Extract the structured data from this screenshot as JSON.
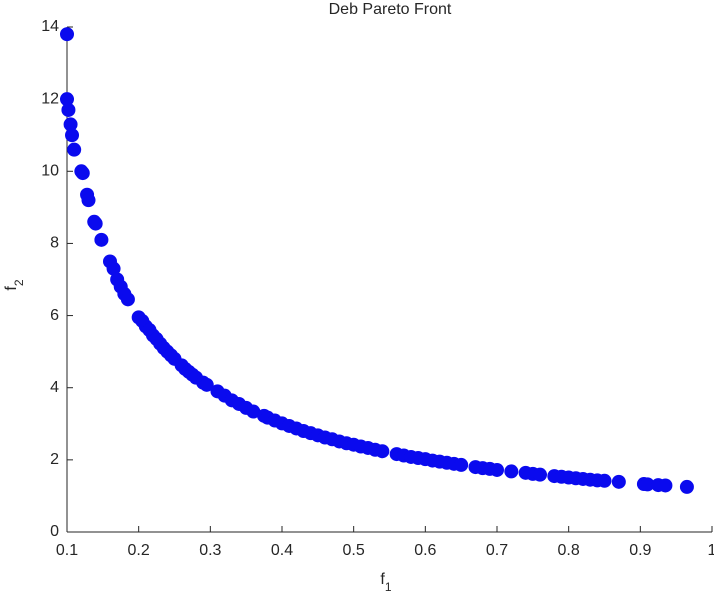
{
  "chart_data": {
    "type": "scatter",
    "title": "Deb Pareto Front",
    "xlabel": "f",
    "xlabel_sub": "1",
    "ylabel": "f",
    "ylabel_sub": "2",
    "color": "#0a0aee",
    "xlim": [
      0.1,
      1
    ],
    "xticks": [
      0.1,
      0.2,
      0.3,
      0.4,
      0.5,
      0.6,
      0.7,
      0.8,
      0.9,
      1
    ],
    "ylim": [
      0,
      14
    ],
    "yticks": [
      0,
      2,
      4,
      6,
      8,
      10,
      12,
      14
    ],
    "x": [
      0.1,
      0.1,
      0.102,
      0.105,
      0.107,
      0.11,
      0.12,
      0.122,
      0.128,
      0.13,
      0.138,
      0.14,
      0.148,
      0.16,
      0.165,
      0.17,
      0.175,
      0.18,
      0.185,
      0.2,
      0.205,
      0.21,
      0.215,
      0.22,
      0.225,
      0.23,
      0.235,
      0.24,
      0.245,
      0.25,
      0.26,
      0.265,
      0.27,
      0.275,
      0.28,
      0.29,
      0.295,
      0.31,
      0.32,
      0.33,
      0.34,
      0.35,
      0.36,
      0.375,
      0.38,
      0.39,
      0.4,
      0.41,
      0.42,
      0.43,
      0.44,
      0.45,
      0.46,
      0.47,
      0.48,
      0.49,
      0.5,
      0.51,
      0.52,
      0.53,
      0.54,
      0.56,
      0.57,
      0.58,
      0.59,
      0.6,
      0.61,
      0.62,
      0.63,
      0.64,
      0.65,
      0.67,
      0.68,
      0.69,
      0.7,
      0.72,
      0.74,
      0.75,
      0.76,
      0.78,
      0.79,
      0.8,
      0.81,
      0.82,
      0.83,
      0.84,
      0.85,
      0.87,
      0.905,
      0.91,
      0.925,
      0.935,
      0.965
    ],
    "values": [
      13.8,
      12,
      11.7,
      11.3,
      11,
      10.6,
      10,
      9.95,
      9.35,
      9.2,
      8.6,
      8.55,
      8.1,
      7.5,
      7.3,
      7.0,
      6.8,
      6.6,
      6.45,
      5.95,
      5.85,
      5.7,
      5.6,
      5.45,
      5.35,
      5.22,
      5.1,
      5.0,
      4.9,
      4.8,
      4.62,
      4.52,
      4.44,
      4.36,
      4.28,
      4.14,
      4.08,
      3.9,
      3.78,
      3.65,
      3.55,
      3.44,
      3.34,
      3.22,
      3.17,
      3.09,
      3.01,
      2.94,
      2.87,
      2.8,
      2.74,
      2.68,
      2.62,
      2.57,
      2.51,
      2.46,
      2.42,
      2.37,
      2.33,
      2.28,
      2.24,
      2.16,
      2.12,
      2.08,
      2.05,
      2.02,
      1.98,
      1.95,
      1.92,
      1.89,
      1.86,
      1.8,
      1.77,
      1.75,
      1.72,
      1.68,
      1.64,
      1.61,
      1.59,
      1.55,
      1.53,
      1.51,
      1.49,
      1.47,
      1.45,
      1.43,
      1.42,
      1.39,
      1.33,
      1.32,
      1.3,
      1.29,
      1.25
    ]
  }
}
